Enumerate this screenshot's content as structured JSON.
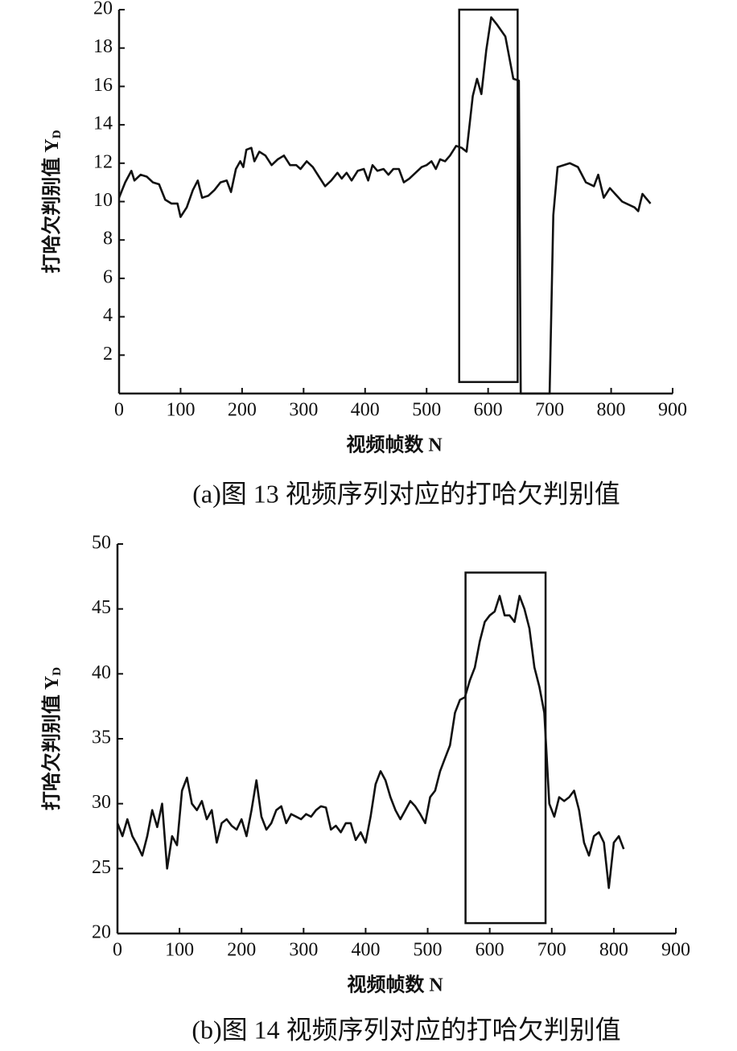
{
  "chart_data": [
    {
      "type": "line",
      "x_label": "视频帧数 N",
      "y_label": "打哈欠判别值 Y",
      "y_label_sub": "D",
      "caption": "(a)图 13 视频序列对应的打哈欠判别值",
      "color": "#111111",
      "xlim": [
        0,
        900
      ],
      "ylim": [
        0,
        20
      ],
      "xticks": [
        0,
        100,
        200,
        300,
        400,
        500,
        600,
        700,
        800,
        900
      ],
      "yticks": [
        2,
        4,
        6,
        8,
        10,
        12,
        14,
        16,
        18,
        20
      ],
      "highlight": {
        "x": [
          553,
          648
        ],
        "y": [
          0.6,
          20
        ]
      },
      "x": [
        0,
        10,
        20,
        25,
        35,
        45,
        55,
        65,
        75,
        85,
        95,
        100,
        110,
        120,
        128,
        135,
        145,
        155,
        165,
        175,
        182,
        190,
        197,
        202,
        207,
        215,
        220,
        228,
        238,
        248,
        258,
        268,
        278,
        288,
        295,
        305,
        315,
        325,
        335,
        345,
        355,
        362,
        370,
        378,
        388,
        398,
        405,
        412,
        420,
        430,
        438,
        446,
        455,
        463,
        472,
        482,
        492,
        500,
        508,
        515,
        522,
        530,
        538,
        548,
        557,
        565,
        575,
        582,
        589,
        597,
        605,
        615,
        628,
        641,
        650,
        653,
        700,
        706,
        713,
        733,
        746,
        759,
        772,
        779,
        788,
        798,
        818,
        838,
        844,
        851,
        864
      ],
      "values": [
        10.2,
        11,
        11.6,
        11.1,
        11.4,
        11.3,
        11,
        10.9,
        10.1,
        9.9,
        9.9,
        9.2,
        9.7,
        10.6,
        11.1,
        10.2,
        10.3,
        10.6,
        11,
        11.1,
        10.5,
        11.7,
        12.1,
        11.8,
        12.7,
        12.8,
        12.1,
        12.6,
        12.4,
        11.9,
        12.2,
        12.4,
        11.9,
        11.9,
        11.7,
        12.1,
        11.8,
        11.3,
        10.8,
        11.1,
        11.5,
        11.2,
        11.5,
        11.1,
        11.6,
        11.7,
        11.1,
        11.9,
        11.6,
        11.7,
        11.4,
        11.7,
        11.7,
        11.0,
        11.2,
        11.5,
        11.8,
        11.9,
        12.1,
        11.7,
        12.2,
        12.1,
        12.4,
        12.9,
        12.8,
        12.6,
        15.5,
        16.4,
        15.6,
        17.9,
        19.6,
        19.2,
        18.6,
        16.4,
        16.3,
        0,
        0,
        9.3,
        11.8,
        12,
        11.8,
        11,
        10.8,
        11.4,
        10.2,
        10.7,
        10,
        9.7,
        9.5,
        10.4,
        9.9
      ]
    },
    {
      "type": "line",
      "x_label": "视频帧数 N",
      "y_label": "打哈欠判别值 Y",
      "y_label_sub": "D",
      "caption": "(b)图 14 视频序列对应的打哈欠判别值",
      "color": "#111111",
      "xlim": [
        0,
        900
      ],
      "ylim": [
        20,
        50
      ],
      "xticks": [
        0,
        100,
        200,
        300,
        400,
        500,
        600,
        700,
        800,
        900
      ],
      "yticks": [
        20,
        25,
        30,
        35,
        40,
        45,
        50
      ],
      "highlight": {
        "x": [
          561,
          690
        ],
        "y": [
          20.8,
          47.8
        ]
      },
      "x": [
        0,
        8,
        16,
        24,
        32,
        40,
        48,
        56,
        64,
        72,
        80,
        88,
        96,
        104,
        112,
        120,
        128,
        136,
        144,
        152,
        160,
        168,
        176,
        184,
        192,
        200,
        208,
        216,
        224,
        232,
        240,
        248,
        256,
        264,
        272,
        280,
        288,
        296,
        304,
        312,
        320,
        328,
        336,
        344,
        352,
        360,
        368,
        376,
        384,
        392,
        400,
        408,
        416,
        424,
        432,
        440,
        448,
        456,
        464,
        472,
        480,
        488,
        496,
        504,
        512,
        520,
        528,
        536,
        544,
        552,
        560,
        568,
        576,
        584,
        592,
        600,
        608,
        616,
        624,
        632,
        640,
        648,
        656,
        664,
        672,
        680,
        688,
        696,
        704,
        712,
        720,
        728,
        736,
        744,
        752,
        760,
        768,
        776,
        784,
        792,
        800,
        808,
        816
      ],
      "values": [
        28.5,
        27.5,
        28.8,
        27.5,
        26.8,
        26.0,
        27.5,
        29.5,
        28.2,
        30.0,
        25.0,
        27.5,
        26.8,
        31.0,
        32.0,
        30.0,
        29.5,
        30.2,
        28.8,
        29.5,
        27.0,
        28.5,
        28.8,
        28.3,
        28.0,
        28.8,
        27.5,
        29.5,
        31.8,
        29.0,
        28.0,
        28.5,
        29.5,
        29.8,
        28.5,
        29.2,
        29.0,
        28.8,
        29.2,
        29.0,
        29.5,
        29.8,
        29.7,
        28.0,
        28.3,
        27.8,
        28.5,
        28.5,
        27.2,
        27.8,
        27.0,
        29.0,
        31.5,
        32.5,
        31.8,
        30.5,
        29.5,
        28.8,
        29.5,
        30.2,
        29.8,
        29.2,
        28.5,
        30.5,
        31.0,
        32.5,
        33.5,
        34.5,
        37.0,
        38.0,
        38.2,
        39.5,
        40.5,
        42.5,
        44.0,
        44.5,
        44.8,
        46.0,
        44.5,
        44.5,
        44.0,
        46.0,
        45.0,
        43.5,
        40.5,
        39.0,
        37.0,
        30.0,
        29.0,
        30.5,
        30.2,
        30.5,
        31.0,
        29.5,
        27.0,
        26.0,
        27.5,
        27.8,
        27.0,
        23.5,
        27.0,
        27.5,
        26.5
      ]
    }
  ]
}
